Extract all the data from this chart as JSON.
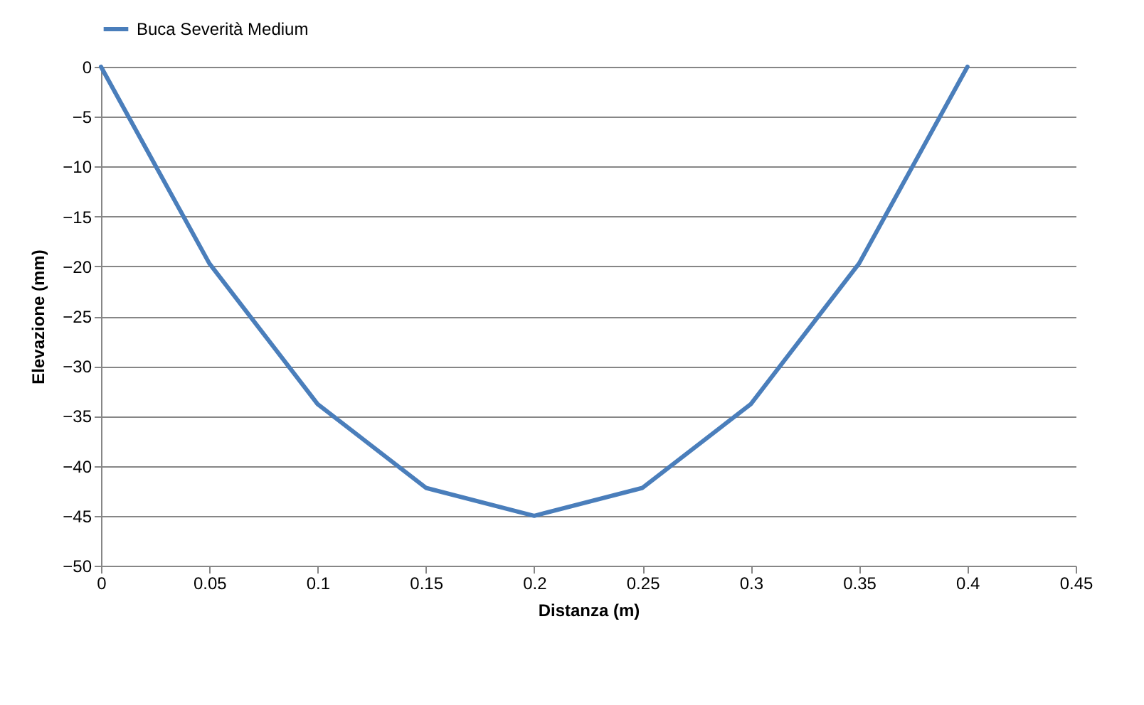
{
  "chart_data": {
    "type": "line",
    "xlabel": "Distanza (m)",
    "ylabel": "Elevazione (mm)",
    "x": [
      0,
      0.05,
      0.1,
      0.15,
      0.2,
      0.25,
      0.3,
      0.35,
      0.4
    ],
    "series": [
      {
        "name": "Buca Severità Medium",
        "color": "#4a7ebb",
        "values": [
          0,
          -19.7,
          -33.8,
          -42.2,
          -45,
          -42.2,
          -33.8,
          -19.7,
          0
        ]
      }
    ],
    "xlim": [
      0,
      0.45
    ],
    "xticks": [
      0,
      0.05,
      0.1,
      0.15,
      0.2,
      0.25,
      0.3,
      0.35,
      0.4,
      0.45
    ],
    "ylim": [
      -50,
      0
    ],
    "yticks": [
      -50,
      -45,
      -40,
      -35,
      -30,
      -25,
      -20,
      -15,
      -10,
      -5,
      0
    ],
    "grid": "y",
    "legend": "top",
    "marker": "none",
    "line_style": "solid"
  }
}
